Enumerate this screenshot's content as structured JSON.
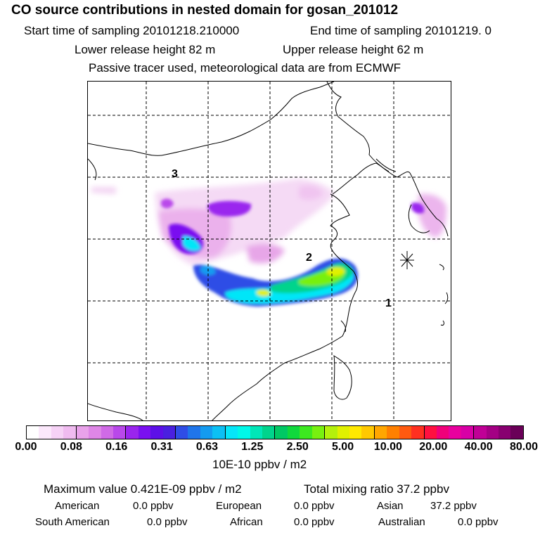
{
  "header": {
    "title": "CO  source contributions in nested domain for gosan_201012",
    "start_time": "Start time of sampling 20101218.210000",
    "end_time": "End time of sampling 20101219.     0",
    "lower_release": "Lower release height   82 m",
    "upper_release": "Upper release height   62 m",
    "tracer_note": "Passive tracer used, meteorological data are from ECMWF"
  },
  "map": {
    "labels": [
      "3",
      "2",
      "1"
    ]
  },
  "colorbar": {
    "ticks": [
      "0.00",
      "0.08",
      "0.16",
      "0.31",
      "0.63",
      "1.25",
      "2.50",
      "5.00",
      "10.00",
      "20.00",
      "40.00",
      "80.00"
    ],
    "unit": "10E-10 ppbv / m2",
    "colors": [
      "#ffffff",
      "#fbe8fb",
      "#f6d2f6",
      "#f0bbf0",
      "#e9a2ea",
      "#de86e6",
      "#d06ae6",
      "#b948ea",
      "#9a25ee",
      "#7a10f0",
      "#5d10e8",
      "#4a20e0",
      "#2f4de6",
      "#1f75ea",
      "#149bf0",
      "#0cc0f4",
      "#06e6f8",
      "#00f8e8",
      "#00e6b8",
      "#00d48c",
      "#00c864",
      "#10d83c",
      "#3ce820",
      "#78f010",
      "#b4f00c",
      "#e0f000",
      "#ffe800",
      "#ffc800",
      "#ffa600",
      "#ff8000",
      "#ff5a10",
      "#ff3020",
      "#ff1040",
      "#f0007a",
      "#e8009e",
      "#d800a6",
      "#c00096",
      "#a40084",
      "#880070",
      "#6a0058"
    ]
  },
  "summary": {
    "max_value": "Maximum value  0.421E-09 ppbv / m2",
    "total_mixing": "Total mixing ratio       37.2 ppbv",
    "american": "American",
    "american_val": "0.0 ppbv",
    "european": "European",
    "european_val": "0.0 ppbv",
    "asian": "Asian",
    "asian_val": "37.2 ppbv",
    "south_american": "South American",
    "south_american_val": "0.0 ppbv",
    "african": "African",
    "african_val": "0.0 ppbv",
    "australian": "Australian",
    "australian_val": "0.0 ppbv"
  }
}
